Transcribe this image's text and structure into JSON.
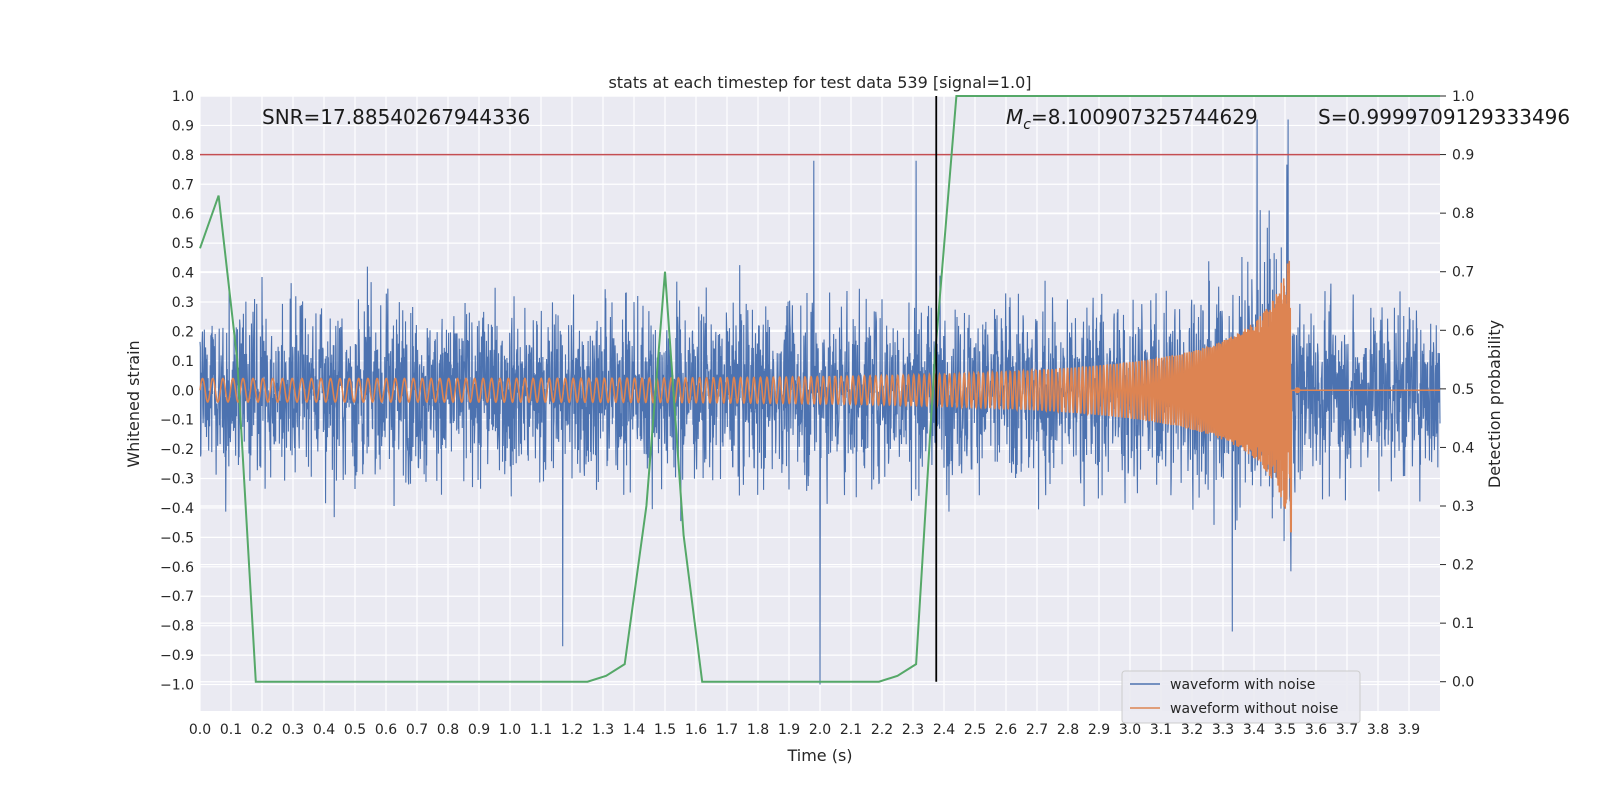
{
  "chart_data": {
    "type": "line",
    "title": "stats at each timestep for test data 539 [signal=1.0]",
    "xlabel": "Time (s)",
    "ylabel_left": "Whitened strain",
    "ylabel_right": "Detection probability",
    "xlim": [
      0.0,
      4.0
    ],
    "ylim_left": [
      -1.09,
      1.0
    ],
    "ylim_right": [
      -0.05,
      1.0
    ],
    "x_ticks": [
      0.0,
      0.1,
      0.2,
      0.3,
      0.4,
      0.5,
      0.6,
      0.7,
      0.8,
      0.9,
      1.0,
      1.1,
      1.2,
      1.3,
      1.4,
      1.5,
      1.6,
      1.7,
      1.8,
      1.9,
      2.0,
      2.1,
      2.2,
      2.3,
      2.4,
      2.5,
      2.6,
      2.7,
      2.8,
      2.9,
      3.0,
      3.1,
      3.2,
      3.3,
      3.4,
      3.5,
      3.6,
      3.7,
      3.8,
      3.9
    ],
    "x_tick_labels": [
      "0.0",
      "0.1",
      "0.2",
      "0.3",
      "0.4",
      "0.5",
      "0.6",
      "0.7",
      "0.8",
      "0.9",
      "1.0",
      "1.1",
      "1.2",
      "1.3",
      "1.4",
      "1.5",
      "1.6",
      "1.7",
      "1.8",
      "1.9",
      "2.0",
      "2.1",
      "2.2",
      "2.3",
      "2.4",
      "2.5",
      "2.6",
      "2.7",
      "2.8",
      "2.9",
      "3.0",
      "3.1",
      "3.2",
      "3.3",
      "3.4",
      "3.5",
      "3.6",
      "3.7",
      "3.8",
      "3.9"
    ],
    "y_left_ticks": [
      1.0,
      0.9,
      0.8,
      0.7,
      0.6,
      0.5,
      0.4,
      0.3,
      0.2,
      0.1,
      0.0,
      -0.1,
      -0.2,
      -0.3,
      -0.4,
      -0.5,
      -0.6,
      -0.7,
      -0.8,
      -0.9,
      -1.0
    ],
    "y_left_tick_labels": [
      "1.0",
      "0.9",
      "0.8",
      "0.7",
      "0.6",
      "0.5",
      "0.4",
      "0.3",
      "0.2",
      "0.1",
      "0.0",
      "−0.1",
      "−0.2",
      "−0.3",
      "−0.4",
      "−0.5",
      "−0.6",
      "−0.7",
      "−0.8",
      "−0.9",
      "−1.0"
    ],
    "y_right_ticks": [
      1.0,
      0.9,
      0.8,
      0.7,
      0.6,
      0.5,
      0.4,
      0.3,
      0.2,
      0.1,
      0.0
    ],
    "y_right_tick_labels": [
      "1.0",
      "0.9",
      "0.8",
      "0.7",
      "0.6",
      "0.5",
      "0.4",
      "0.3",
      "0.2",
      "0.1",
      "0.0"
    ],
    "grid": true,
    "legend_position": "lower-right",
    "annotations": {
      "snr": "SNR=17.88540267944336",
      "mc": "=8.100907325744629",
      "mc_symbol": "M",
      "mc_subscript": "c",
      "s": "S=0.9999709129333496"
    },
    "series": [
      {
        "name": "waveform with noise",
        "axis": "left",
        "color": "#4c72b0",
        "x_range": [
          0.0,
          4.0
        ],
        "amplitude_envelope": "noise approx ±0.5, peaks near 0.9 and -1.0",
        "peaks": [
          [
            1.98,
            0.78
          ],
          [
            2.31,
            0.78
          ],
          [
            3.41,
            0.92
          ],
          [
            3.51,
            0.92
          ],
          [
            2.0,
            -1.0
          ],
          [
            1.17,
            -0.87
          ],
          [
            3.33,
            -0.82
          ]
        ]
      },
      {
        "name": "waveform without noise",
        "axis": "left",
        "color": "#dd8452",
        "x_range": [
          0.0,
          3.53
        ],
        "chirp_amplitude_start": 0.04,
        "chirp_amplitude_end": 0.5,
        "merger_time": 3.52,
        "ringdown_value": 0.0
      },
      {
        "axis": "right",
        "color": "#55a868",
        "x": [
          0.0,
          0.06,
          0.12,
          0.18,
          0.25,
          0.32,
          0.5,
          0.75,
          1.0,
          1.25,
          1.31,
          1.37,
          1.44,
          1.5,
          1.56,
          1.62,
          1.69,
          2.0,
          2.19,
          2.25,
          2.31,
          2.37,
          2.44,
          2.5,
          3.0,
          3.5,
          4.0
        ],
        "y": [
          0.74,
          0.83,
          0.55,
          0.0,
          0.0,
          0.0,
          0.0,
          0.0,
          0.0,
          0.0,
          0.01,
          0.03,
          0.3,
          0.7,
          0.25,
          0.0,
          0.0,
          0.0,
          0.0,
          0.01,
          0.03,
          0.55,
          1.0,
          1.0,
          1.0,
          1.0,
          1.0
        ]
      }
    ],
    "threshold_line": {
      "axis": "right",
      "y": 0.9,
      "color": "#c44e52"
    },
    "vertical_line": {
      "x": 2.375,
      "color": "#000000"
    }
  }
}
